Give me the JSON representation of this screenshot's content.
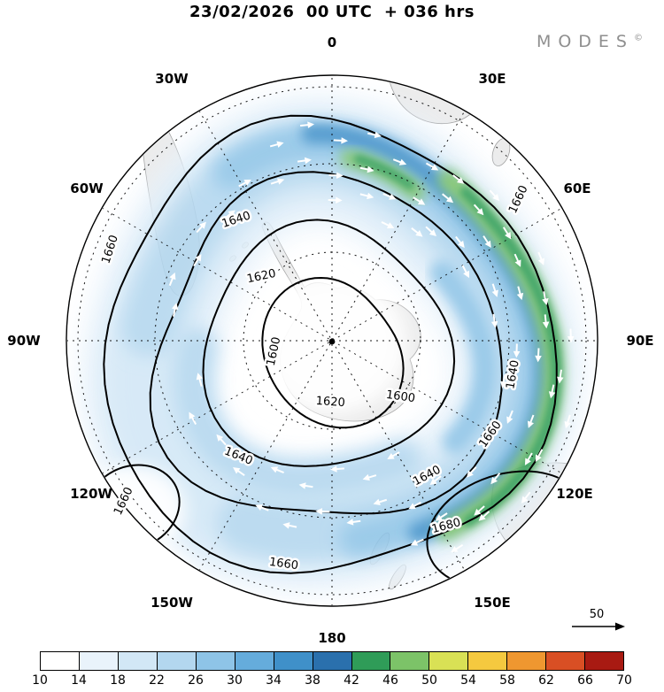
{
  "header": {
    "title": "23/02/2026  00 UTC  + 036 hrs",
    "logo": "MODES",
    "copyright": "©"
  },
  "map": {
    "lon_labels": [
      "0",
      "30E",
      "60E",
      "90E",
      "120E",
      "150E",
      "180",
      "150W",
      "120W",
      "90W",
      "60W",
      "30W"
    ],
    "contour_levels": [
      "1600",
      "1620",
      "1640",
      "1660",
      "1680"
    ]
  },
  "legend": {
    "ref_arrow_label": "50"
  },
  "colorbar": {
    "ticks": [
      "10",
      "14",
      "18",
      "22",
      "26",
      "30",
      "34",
      "38",
      "42",
      "46",
      "50",
      "54",
      "58",
      "62",
      "66",
      "70"
    ],
    "colors": [
      "#ffffff",
      "#e9f3fb",
      "#d2e7f6",
      "#b3d7ef",
      "#8ec4e7",
      "#65acdc",
      "#3f90c9",
      "#2a70ad",
      "#2f9c58",
      "#7cc368",
      "#d9e155",
      "#f5c93f",
      "#ef9730",
      "#d94f24",
      "#a81a12"
    ]
  },
  "chart_data": {
    "type": "heatmap",
    "title": "23/02/2026 00 UTC + 036 hrs",
    "projection": "south polar stereographic",
    "shaded_field": {
      "name": "wind speed shading",
      "levels": [
        10,
        14,
        18,
        22,
        26,
        30,
        34,
        38,
        42,
        46,
        50,
        54,
        58,
        62,
        66,
        70
      ],
      "colors": [
        "#ffffff",
        "#e9f3fb",
        "#d2e7f6",
        "#b3d7ef",
        "#8ec4e7",
        "#65acdc",
        "#3f90c9",
        "#2a70ad",
        "#2f9c58",
        "#7cc368",
        "#d9e155",
        "#f5c93f",
        "#ef9730",
        "#d94f24",
        "#a81a12"
      ],
      "legend_position": "bottom"
    },
    "contour_field": {
      "name": "geopotential height contours",
      "levels": [
        1600,
        1620,
        1640,
        1660,
        1680
      ],
      "pattern": "closed circumpolar contours around the South Pole; 1600 innermost, 1660/1680 near the map edge; closed 1660 low south-west sector, 1680 near Australia"
    },
    "vectors": {
      "style": "white wind arrows along circumpolar jet, clockwise (eastward) flow",
      "reference_value": 50
    },
    "longitude_labels": [
      "0",
      "30E",
      "60E",
      "90E",
      "120E",
      "150E",
      "180",
      "150W",
      "120W",
      "90W",
      "60W",
      "30W"
    ],
    "branding": "MODES©"
  }
}
